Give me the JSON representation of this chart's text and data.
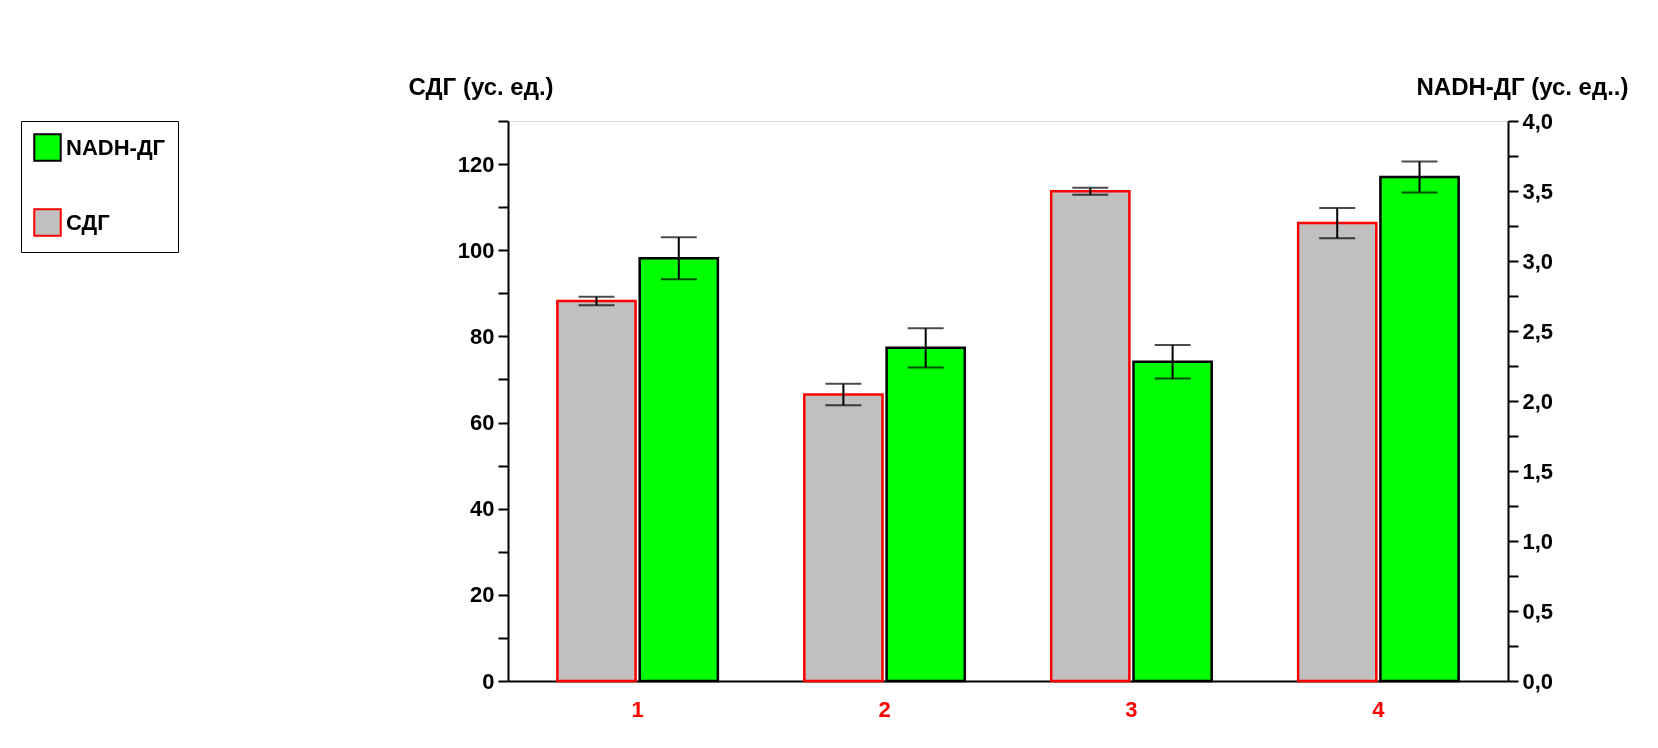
{
  "chart_data": {
    "type": "bar",
    "ylabel": "СДГ (ус. ед.)",
    "y2label": "NADH-ДГ (ус. ед..)",
    "categories": [
      "1",
      "2",
      "3",
      "4"
    ],
    "series": [
      {
        "name": "NADH-ДГ",
        "color": "#00ff00",
        "axis": "y2",
        "values": [
          3.02,
          2.38,
          2.28,
          3.6
        ],
        "errors": [
          0.15,
          0.14,
          0.12,
          0.11
        ]
      },
      {
        "name": "СДГ",
        "color": "#c0c0c0",
        "values": [
          88.2,
          66.5,
          113.7,
          106.3
        ],
        "errors": [
          1.0,
          2.5,
          0.8,
          3.5
        ]
      }
    ],
    "ylim": [
      0,
      130
    ],
    "yticks": [
      0,
      {
        "value": 10,
        "label": null
      },
      20,
      {
        "value": 30,
        "label": null
      },
      40,
      {
        "value": 50,
        "label": null
      },
      60,
      {
        "value": 70,
        "label": null
      },
      80,
      {
        "value": 90,
        "label": null
      },
      100,
      {
        "value": 110,
        "label": null
      },
      120,
      {
        "value": 130,
        "label": null
      }
    ],
    "y2lim": [
      0,
      4
    ],
    "y2ticks": [
      {
        "value": 0,
        "label": "0,0"
      },
      {
        "value": 0.25,
        "label": null
      },
      {
        "value": 0.5,
        "label": "0,5"
      },
      {
        "value": 0.75,
        "label": null
      },
      {
        "value": 1,
        "label": "1,0"
      },
      {
        "value": 1.25,
        "label": null
      },
      {
        "value": 1.5,
        "label": "1,5"
      },
      {
        "value": 1.75,
        "label": null
      },
      {
        "value": 2,
        "label": "2,0"
      },
      {
        "value": 2.25,
        "label": null
      },
      {
        "value": 2.5,
        "label": "2,5"
      },
      {
        "value": 2.75,
        "label": null
      },
      {
        "value": 3,
        "label": "3,0"
      },
      {
        "value": 3.25,
        "label": null
      },
      {
        "value": 3.5,
        "label": "3,5"
      },
      {
        "value": 3.75,
        "label": null
      },
      {
        "value": 4,
        "label": "4,0"
      }
    ],
    "legend": "left",
    "grid": false
  }
}
